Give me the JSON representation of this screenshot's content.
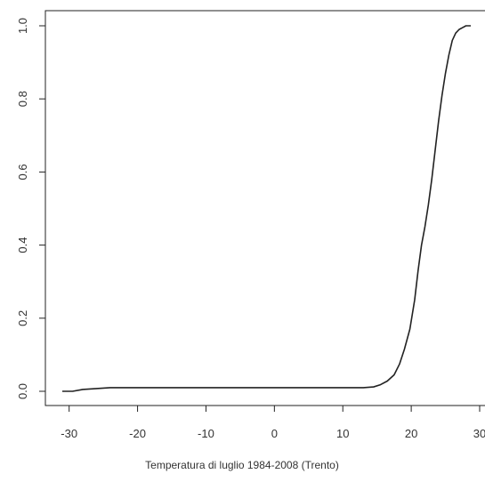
{
  "chart_data": {
    "type": "line",
    "title": "",
    "xlabel": "Temperatura di luglio 1984-2008 (Trento)",
    "ylabel": "",
    "xlim": [
      -31,
      30
    ],
    "ylim": [
      0,
      1
    ],
    "grid": false,
    "x_ticks": [
      -30,
      -20,
      -10,
      0,
      10,
      20,
      30
    ],
    "x_tick_labels": [
      "-30",
      "-20",
      "-10",
      "0",
      "10",
      "20",
      "30"
    ],
    "y_ticks": [
      0.0,
      0.2,
      0.4,
      0.6,
      0.8,
      1.0
    ],
    "y_tick_labels": [
      "0.0",
      "0.2",
      "0.4",
      "0.6",
      "0.8",
      "1.0"
    ],
    "series": [
      {
        "x": [
          -31,
          -29.5,
          -28,
          -24,
          -20,
          -10,
          0,
          10,
          13,
          14.5,
          15.5,
          16.5,
          17.5,
          18.3,
          19,
          19.8,
          20.5,
          21,
          21.5,
          22,
          22.5,
          23,
          23.5,
          24,
          24.5,
          25,
          25.5,
          26,
          26.5,
          27,
          27.5,
          28,
          28.7
        ],
        "y": [
          0.0,
          0.0,
          0.005,
          0.01,
          0.01,
          0.01,
          0.01,
          0.01,
          0.01,
          0.012,
          0.018,
          0.028,
          0.045,
          0.075,
          0.115,
          0.17,
          0.25,
          0.33,
          0.4,
          0.45,
          0.51,
          0.58,
          0.66,
          0.74,
          0.81,
          0.87,
          0.92,
          0.96,
          0.98,
          0.99,
          0.995,
          1.0,
          1.0
        ],
        "color": "#222222"
      }
    ]
  }
}
